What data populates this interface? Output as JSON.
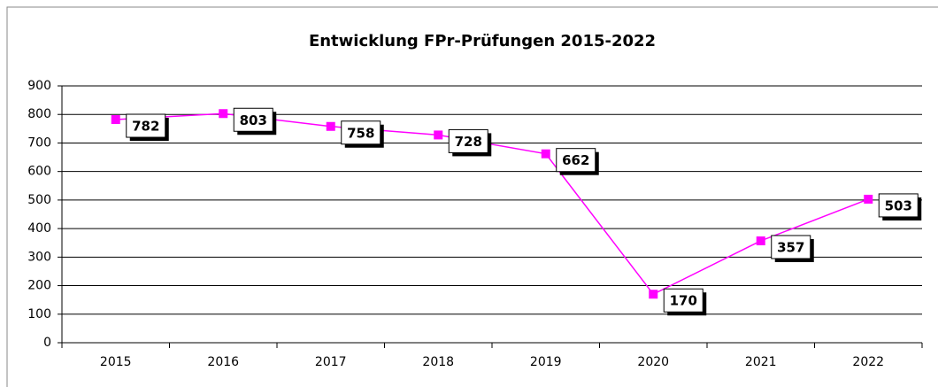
{
  "chart_data": {
    "type": "line",
    "title": "Entwicklung FPr-Prüfungen 2015-2022",
    "categories": [
      "2015",
      "2016",
      "2017",
      "2018",
      "2019",
      "2020",
      "2021",
      "2022"
    ],
    "series": [
      {
        "name": "FPr-Prüfungen",
        "color": "#ff00ff",
        "values": [
          782,
          803,
          758,
          728,
          662,
          170,
          357,
          503
        ]
      }
    ],
    "ylim": [
      0,
      900
    ],
    "yticks": [
      0,
      100,
      200,
      300,
      400,
      500,
      600,
      700,
      800,
      900
    ],
    "grid": true
  }
}
